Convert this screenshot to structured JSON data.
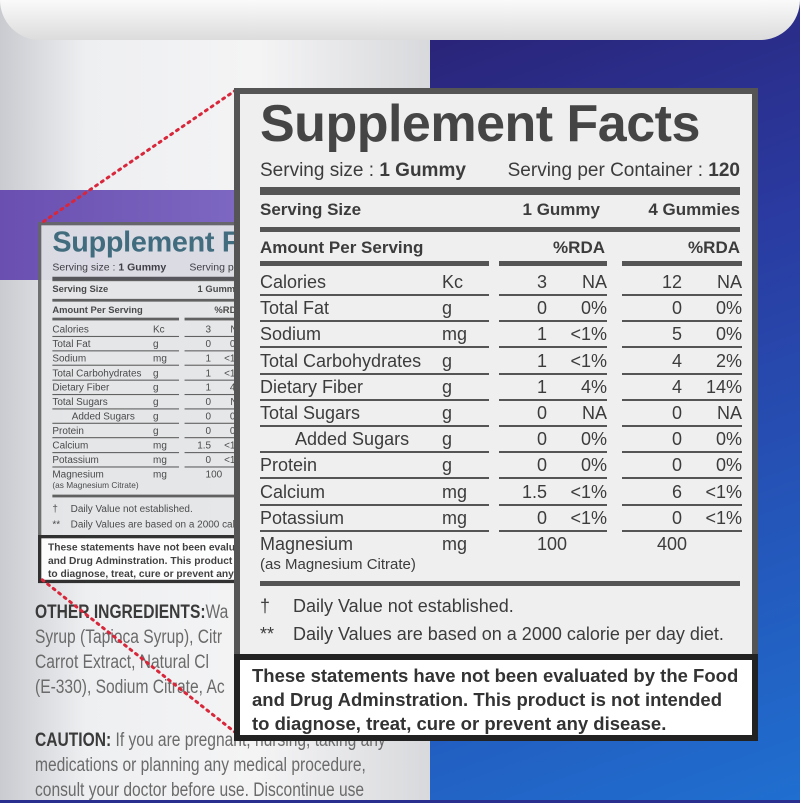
{
  "label": {
    "title": "Supplement Facts",
    "serving_size_label": "Serving size :",
    "serving_size_value": "1 Gummy",
    "servings_label": "Serving per Container :",
    "servings_value": "120",
    "col_header": "Serving Size",
    "col1": "1 Gummy",
    "col2": "4 Gummies",
    "amount_header": "Amount Per Serving",
    "rda1": "%RDA",
    "rda2": "%RDA",
    "rows": [
      {
        "name": "Calories",
        "unit": "Kc",
        "v1": "3",
        "p1": "NA",
        "v2": "12",
        "p2": "NA"
      },
      {
        "name": "Total Fat",
        "unit": "g",
        "v1": "0",
        "p1": "0%",
        "v2": "0",
        "p2": "0%"
      },
      {
        "name": "Sodium",
        "unit": "mg",
        "v1": "1",
        "p1": "<1%",
        "v2": "5",
        "p2": "0%"
      },
      {
        "name": "Total Carbohydrates",
        "unit": "g",
        "v1": "1",
        "p1": "<1%",
        "v2": "4",
        "p2": "2%"
      },
      {
        "name": "Dietary Fiber",
        "unit": "g",
        "v1": "1",
        "p1": "4%",
        "v2": "4",
        "p2": "14%"
      },
      {
        "name": "Total Sugars",
        "unit": "g",
        "v1": "0",
        "p1": "NA",
        "v2": "0",
        "p2": "NA"
      },
      {
        "name": "Added Sugars",
        "unit": "g",
        "v1": "0",
        "p1": "0%",
        "v2": "0",
        "p2": "0%",
        "indent": true
      },
      {
        "name": "Protein",
        "unit": "g",
        "v1": "0",
        "p1": "0%",
        "v2": "0",
        "p2": "0%"
      },
      {
        "name": "Calcium",
        "unit": "mg",
        "v1": "1.5",
        "p1": "<1%",
        "v2": "6",
        "p2": "<1%"
      },
      {
        "name": "Potassium",
        "unit": "mg",
        "v1": "0",
        "p1": "<1%",
        "v2": "0",
        "p2": "<1%"
      },
      {
        "name": "Magnesium",
        "sub": "(as Magnesium Citrate)",
        "unit": "mg",
        "v1": "100",
        "p1": "",
        "v2": "400",
        "p2": ""
      }
    ],
    "foot1_sym": "†",
    "foot1": "Daily Value not established.",
    "foot2_sym": "**",
    "foot2": "Daily Values are based on a 2000 calorie per day diet.",
    "disclaimer": "These statements have not been evaluated by the Food and Drug Adminstration. This product is not intended to diagnose, treat, cure or prevent any disease."
  },
  "bottle": {
    "other_label": "OTHER INGREDIENTS:",
    "other_text_lines": [
      "Wa",
      "Syrup (Tapioca Syrup), Citr",
      "Carrot Extract, Natural Cl",
      "(E-330), Sodium Citrate, Ac"
    ],
    "caution_label": "CAUTION:",
    "caution_text_lines": [
      " If you are pregnant, nursing, taking any",
      "medications or planning any medical procedure,",
      "consult your doctor before use. Discontinue use"
    ]
  },
  "colors": {
    "label_border": "#555555",
    "zoom_line": "#d8263a",
    "background": "#2a3aa0"
  }
}
